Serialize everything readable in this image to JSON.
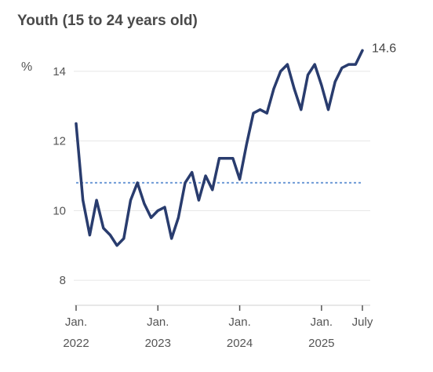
{
  "chart_data": {
    "type": "line",
    "title": "Youth (15 to 24 years old)",
    "unit_label": "%",
    "ylim": [
      7.8,
      14.9
    ],
    "y_ticks": [
      {
        "value": 8,
        "label": "8"
      },
      {
        "value": 10,
        "label": "10"
      },
      {
        "value": 12,
        "label": "12"
      },
      {
        "value": 14,
        "label": "14"
      }
    ],
    "x_ticks": [
      {
        "index": 0,
        "line1": "Jan.",
        "line2": "2022"
      },
      {
        "index": 12,
        "line1": "Jan.",
        "line2": "2023"
      },
      {
        "index": 24,
        "line1": "Jan.",
        "line2": "2024"
      },
      {
        "index": 36,
        "line1": "Jan.",
        "line2": "2025"
      },
      {
        "index": 42,
        "line1": "July",
        "line2": ""
      }
    ],
    "x": [
      "2022-01",
      "2022-02",
      "2022-03",
      "2022-04",
      "2022-05",
      "2022-06",
      "2022-07",
      "2022-08",
      "2022-09",
      "2022-10",
      "2022-11",
      "2022-12",
      "2023-01",
      "2023-02",
      "2023-03",
      "2023-04",
      "2023-05",
      "2023-06",
      "2023-07",
      "2023-08",
      "2023-09",
      "2023-10",
      "2023-11",
      "2023-12",
      "2024-01",
      "2024-02",
      "2024-03",
      "2024-04",
      "2024-05",
      "2024-06",
      "2024-07",
      "2024-08",
      "2024-09",
      "2024-10",
      "2024-11",
      "2024-12",
      "2025-01",
      "2025-02",
      "2025-03",
      "2025-04",
      "2025-05",
      "2025-06",
      "2025-07"
    ],
    "values": [
      12.5,
      10.3,
      9.3,
      10.3,
      9.5,
      9.3,
      9.0,
      9.2,
      10.3,
      10.8,
      10.2,
      9.8,
      10.0,
      10.1,
      9.2,
      9.8,
      10.8,
      11.1,
      10.3,
      11.0,
      10.6,
      11.5,
      11.5,
      11.5,
      10.9,
      11.9,
      12.8,
      12.9,
      12.8,
      13.5,
      14.0,
      14.2,
      13.5,
      12.9,
      13.9,
      14.2,
      13.6,
      12.9,
      13.7,
      14.1,
      14.2,
      14.2,
      14.6
    ],
    "reference_value": 10.8,
    "end_label": "14.6",
    "colors": {
      "line": "#293c6e",
      "reference": "#6f9bd6",
      "grid": "#e6e6e6",
      "axis": "#555555"
    }
  }
}
